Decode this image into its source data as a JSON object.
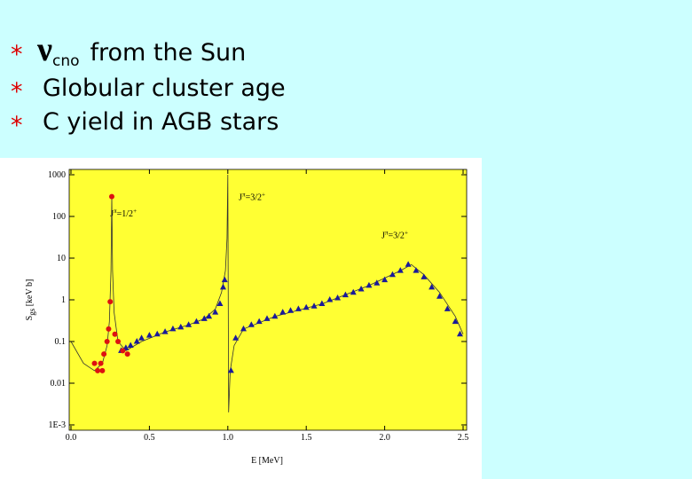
{
  "slide": {
    "bullet_symbol": "*",
    "bullets": [
      {
        "symbol": "ν",
        "sub": "cno",
        "text": "from the Sun"
      },
      {
        "text": "Globular cluster age"
      },
      {
        "text": "C yield in AGB stars"
      }
    ]
  },
  "chart_data": {
    "type": "scatter",
    "log_y": true,
    "xlabel": "E [MeV]",
    "ylabel": {
      "main": "S",
      "sub": "gs",
      "rest": " [keV b]"
    },
    "xlim": [
      0,
      2.5
    ],
    "ylim": [
      0.001,
      1000
    ],
    "xticks": [
      {
        "value": 0,
        "label": "0.0"
      },
      0.5,
      {
        "value": 1,
        "label": "1.0"
      },
      1.5,
      {
        "value": 2,
        "label": "2.0"
      },
      2.5
    ],
    "yticks": [
      {
        "value": 0.001,
        "label": "1E-3"
      },
      0.01,
      0.1,
      1,
      10,
      100,
      1000
    ],
    "background": "#ffff33",
    "annotations": [
      {
        "a": "J",
        "b": "π",
        "c": "=1/2",
        "d": "+",
        "x": 0.25,
        "y": 100
      },
      {
        "a": "J",
        "b": "π",
        "c": "=3/2",
        "d": "+",
        "x": 1.07,
        "y": 250
      },
      {
        "a": "J",
        "b": "π",
        "c": "=3/2",
        "d": "+",
        "x": 1.98,
        "y": 30
      }
    ],
    "series": [
      {
        "mode": "line",
        "color": "#333333",
        "x": [
          0.0,
          0.08,
          0.15,
          0.2,
          0.23,
          0.245,
          0.255,
          0.26,
          0.265,
          0.275,
          0.3,
          0.35,
          0.45,
          0.6,
          0.75,
          0.85,
          0.92,
          0.96,
          0.985,
          0.995,
          1.0,
          1.005,
          1.015,
          1.04,
          1.1,
          1.3,
          1.6,
          1.9,
          2.1,
          2.17,
          2.25,
          2.35,
          2.45,
          2.5
        ],
        "values": [
          0.1,
          0.03,
          0.02,
          0.03,
          0.08,
          0.3,
          5,
          300,
          5,
          0.5,
          0.1,
          0.06,
          0.1,
          0.17,
          0.25,
          0.35,
          0.6,
          1.5,
          5,
          30,
          1000,
          0.002,
          0.02,
          0.08,
          0.2,
          0.4,
          0.8,
          2.2,
          5,
          7,
          4,
          1.5,
          0.4,
          0.15
        ]
      },
      {
        "mode": "markers",
        "marker": "triangle",
        "color": "#1a1a99",
        "x": [
          0.32,
          0.35,
          0.38,
          0.42,
          0.45,
          0.5,
          0.55,
          0.6,
          0.65,
          0.7,
          0.75,
          0.8,
          0.85,
          0.88,
          0.92,
          0.95,
          0.97,
          0.98,
          1.02,
          1.05,
          1.1,
          1.15,
          1.2,
          1.25,
          1.3,
          1.35,
          1.4,
          1.45,
          1.5,
          1.55,
          1.6,
          1.65,
          1.7,
          1.75,
          1.8,
          1.85,
          1.9,
          1.95,
          2.0,
          2.05,
          2.1,
          2.15,
          2.2,
          2.25,
          2.3,
          2.35,
          2.4,
          2.45,
          2.48
        ],
        "values": [
          0.06,
          0.07,
          0.08,
          0.1,
          0.12,
          0.14,
          0.15,
          0.17,
          0.2,
          0.22,
          0.25,
          0.3,
          0.35,
          0.4,
          0.5,
          0.8,
          2,
          3,
          0.02,
          0.12,
          0.2,
          0.25,
          0.3,
          0.35,
          0.4,
          0.5,
          0.55,
          0.6,
          0.65,
          0.7,
          0.8,
          1,
          1.1,
          1.3,
          1.5,
          1.8,
          2.2,
          2.5,
          3,
          4,
          5,
          7,
          5,
          3.5,
          2,
          1.2,
          0.6,
          0.3,
          0.15
        ]
      },
      {
        "mode": "markers",
        "marker": "circle",
        "color": "#dd1111",
        "x": [
          0.15,
          0.17,
          0.19,
          0.2,
          0.21,
          0.23,
          0.24,
          0.25,
          0.26,
          0.28,
          0.3,
          0.33,
          0.36
        ],
        "values": [
          0.03,
          0.02,
          0.03,
          0.02,
          0.05,
          0.1,
          0.2,
          0.9,
          300,
          0.15,
          0.1,
          0.06,
          0.05
        ]
      }
    ]
  }
}
